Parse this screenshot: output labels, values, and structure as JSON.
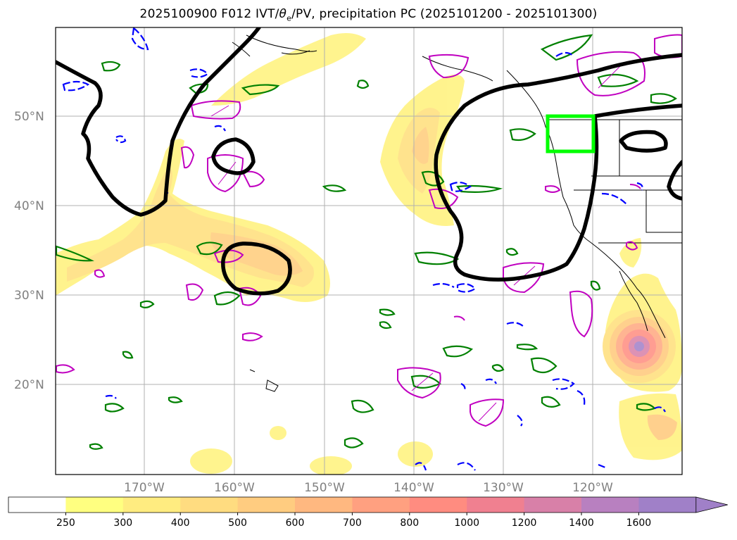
{
  "title_parts": {
    "pre": "2025100900 F012 IVT/",
    "theta": "θ",
    "sub": "e",
    "post": "/PV, precipitation PC (2025101200 - 2025101300)"
  },
  "latitude_labels": [
    "50°N",
    "40°N",
    "30°N",
    "20°N"
  ],
  "longitude_labels": [
    "170°W",
    "160°W",
    "150°W",
    "140°W",
    "130°W",
    "120°W"
  ],
  "colorbar": {
    "ticks": [
      "250",
      "300",
      "400",
      "500",
      "600",
      "700",
      "800",
      "1000",
      "1200",
      "1400",
      "1600"
    ],
    "colors": [
      "#ffffff",
      "#ffff80",
      "#ffec80",
      "#ffdc80",
      "#ffcc80",
      "#ffb880",
      "#ffa080",
      "#ff8c80",
      "#f08090",
      "#d880a8",
      "#b880c0",
      "#a080c8"
    ],
    "extend": "max"
  },
  "colors": {
    "ivt_fill": "#ffdc60",
    "pv_contour": "#000000",
    "theta_positive": "#008000",
    "theta_negative": "#0000ff",
    "precip_contour": "#c000c0",
    "target_box": "#00ff00",
    "grid": "#b0b0b0",
    "tick_label": "#808080"
  }
}
